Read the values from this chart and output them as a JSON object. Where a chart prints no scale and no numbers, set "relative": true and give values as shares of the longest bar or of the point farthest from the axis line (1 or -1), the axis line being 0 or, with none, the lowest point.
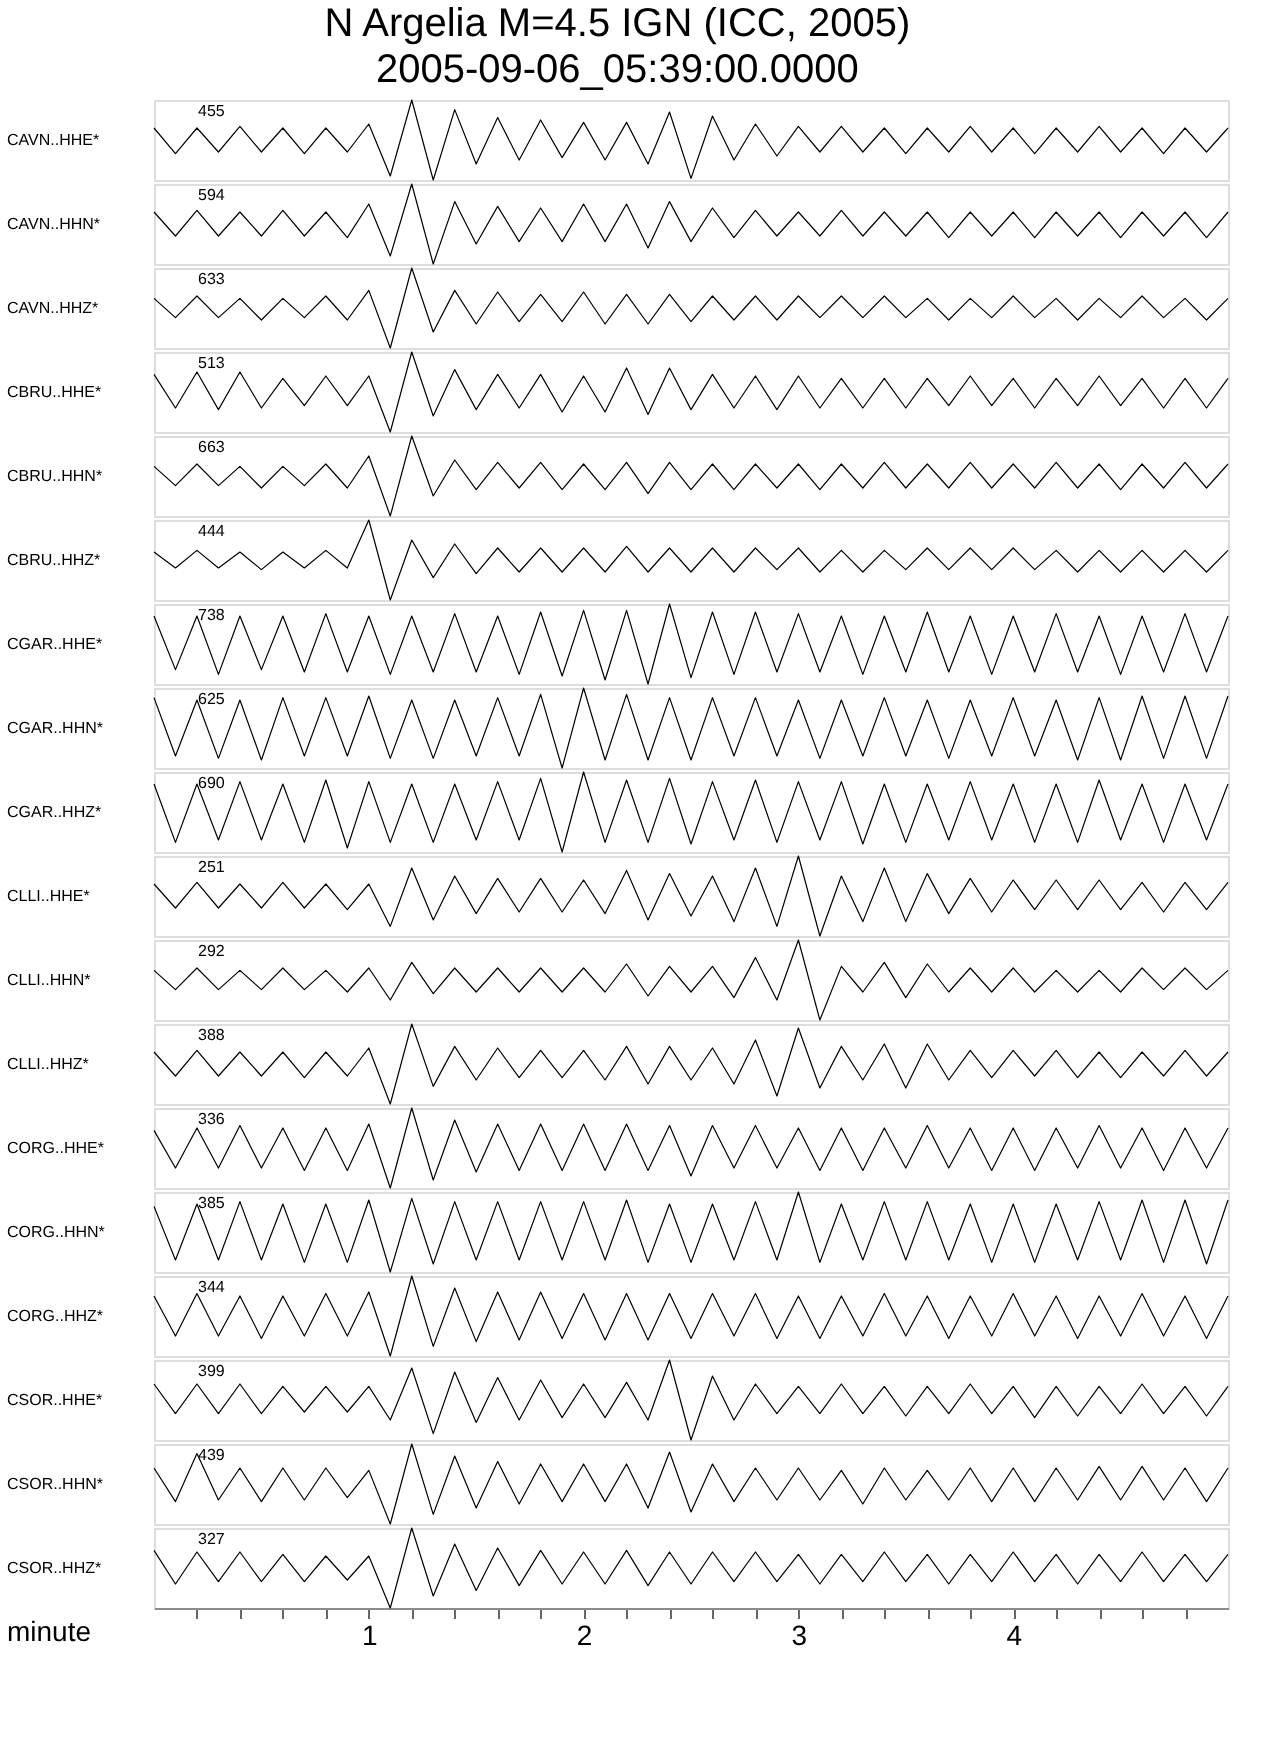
{
  "chart_data": [
    {
      "type": "line",
      "relative": true,
      "title": "N Argelia M=4.5 IGN (ICC, 2005)",
      "subtitle": "2005-09-06_05:39:00.0000",
      "ylabel": "CAVN..HHE*",
      "annotations": [
        "455"
      ],
      "tick_labels": false,
      "color": "#000000",
      "categories": [
        null,
        null,
        null,
        null,
        null,
        null,
        null,
        null,
        null,
        null,
        null,
        null,
        null,
        null,
        null,
        null,
        null,
        null,
        null,
        null,
        null,
        null,
        null,
        null,
        null,
        null,
        null,
        null,
        null,
        null,
        null,
        null,
        null,
        null,
        null,
        null,
        null,
        null,
        null,
        null,
        null,
        null,
        null,
        null,
        null,
        null,
        null,
        null,
        null,
        null,
        null
      ],
      "values": [
        0.65,
        0.33,
        0.65,
        0.35,
        0.67,
        0.35,
        0.65,
        0.33,
        0.65,
        0.35,
        0.7,
        0.05,
        1,
        0,
        0.88,
        0.2,
        0.78,
        0.25,
        0.75,
        0.28,
        0.72,
        0.25,
        0.72,
        0.2,
        0.85,
        0.02,
        0.8,
        0.25,
        0.7,
        0.3,
        0.67,
        0.35,
        0.67,
        0.35,
        0.65,
        0.33,
        0.65,
        0.35,
        0.67,
        0.35,
        0.65,
        0.33,
        0.65,
        0.35,
        0.67,
        0.35,
        0.65,
        0.33,
        0.65,
        0.35,
        0.65
      ]
    },
    {
      "type": "line",
      "relative": true,
      "ylabel": "CAVN..HHN*",
      "annotations": [
        "594"
      ],
      "tick_labels": false,
      "color": "#000000",
      "categories": [
        null,
        null,
        null,
        null,
        null,
        null,
        null,
        null,
        null,
        null,
        null,
        null,
        null,
        null,
        null,
        null,
        null,
        null,
        null,
        null,
        null,
        null,
        null,
        null,
        null,
        null,
        null,
        null,
        null,
        null,
        null,
        null,
        null,
        null,
        null,
        null,
        null,
        null,
        null,
        null,
        null,
        null,
        null,
        null,
        null,
        null,
        null,
        null,
        null,
        null,
        null
      ],
      "values": [
        0.65,
        0.35,
        0.67,
        0.35,
        0.65,
        0.35,
        0.67,
        0.35,
        0.65,
        0.33,
        0.75,
        0.1,
        1,
        0,
        0.78,
        0.25,
        0.72,
        0.28,
        0.7,
        0.28,
        0.75,
        0.28,
        0.75,
        0.2,
        0.78,
        0.28,
        0.7,
        0.33,
        0.67,
        0.35,
        0.65,
        0.35,
        0.67,
        0.35,
        0.65,
        0.35,
        0.65,
        0.33,
        0.65,
        0.35,
        0.65,
        0.33,
        0.65,
        0.35,
        0.65,
        0.33,
        0.65,
        0.35,
        0.65,
        0.33,
        0.65
      ]
    },
    {
      "type": "line",
      "relative": true,
      "ylabel": "CAVN..HHZ*",
      "annotations": [
        "633"
      ],
      "tick_labels": false,
      "color": "#000000",
      "categories": [
        null,
        null,
        null,
        null,
        null,
        null,
        null,
        null,
        null,
        null,
        null,
        null,
        null,
        null,
        null,
        null,
        null,
        null,
        null,
        null,
        null,
        null,
        null,
        null,
        null,
        null,
        null,
        null,
        null,
        null,
        null,
        null,
        null,
        null,
        null,
        null,
        null,
        null,
        null,
        null,
        null,
        null,
        null,
        null,
        null,
        null,
        null,
        null,
        null,
        null,
        null
      ],
      "values": [
        0.62,
        0.38,
        0.65,
        0.38,
        0.62,
        0.35,
        0.62,
        0.38,
        0.65,
        0.35,
        0.72,
        0,
        1,
        0.2,
        0.72,
        0.3,
        0.7,
        0.33,
        0.67,
        0.33,
        0.7,
        0.3,
        0.67,
        0.3,
        0.67,
        0.33,
        0.65,
        0.35,
        0.65,
        0.35,
        0.65,
        0.38,
        0.65,
        0.38,
        0.65,
        0.38,
        0.62,
        0.35,
        0.62,
        0.38,
        0.65,
        0.38,
        0.62,
        0.35,
        0.62,
        0.38,
        0.65,
        0.38,
        0.62,
        0.35,
        0.62
      ]
    },
    {
      "type": "line",
      "relative": true,
      "ylabel": "CBRU..HHE*",
      "annotations": [
        "513"
      ],
      "tick_labels": false,
      "color": "#000000",
      "categories": [
        null,
        null,
        null,
        null,
        null,
        null,
        null,
        null,
        null,
        null,
        null,
        null,
        null,
        null,
        null,
        null,
        null,
        null,
        null,
        null,
        null,
        null,
        null,
        null,
        null,
        null,
        null,
        null,
        null,
        null,
        null,
        null,
        null,
        null,
        null,
        null,
        null,
        null,
        null,
        null,
        null,
        null,
        null,
        null,
        null,
        null,
        null,
        null,
        null,
        null,
        null
      ],
      "values": [
        0.72,
        0.3,
        0.75,
        0.28,
        0.75,
        0.3,
        0.67,
        0.33,
        0.7,
        0.33,
        0.7,
        0,
        1,
        0.2,
        0.78,
        0.28,
        0.72,
        0.3,
        0.72,
        0.25,
        0.7,
        0.25,
        0.8,
        0.22,
        0.8,
        0.28,
        0.72,
        0.3,
        0.7,
        0.28,
        0.7,
        0.3,
        0.67,
        0.3,
        0.67,
        0.3,
        0.67,
        0.33,
        0.7,
        0.33,
        0.67,
        0.3,
        0.67,
        0.33,
        0.7,
        0.33,
        0.67,
        0.3,
        0.67,
        0.3,
        0.67
      ]
    },
    {
      "type": "line",
      "relative": true,
      "ylabel": "CBRU..HHN*",
      "annotations": [
        "663"
      ],
      "tick_labels": false,
      "color": "#000000",
      "categories": [
        null,
        null,
        null,
        null,
        null,
        null,
        null,
        null,
        null,
        null,
        null,
        null,
        null,
        null,
        null,
        null,
        null,
        null,
        null,
        null,
        null,
        null,
        null,
        null,
        null,
        null,
        null,
        null,
        null,
        null,
        null,
        null,
        null,
        null,
        null,
        null,
        null,
        null,
        null,
        null,
        null,
        null,
        null,
        null,
        null,
        null,
        null,
        null,
        null,
        null,
        null
      ],
      "values": [
        0.62,
        0.38,
        0.65,
        0.38,
        0.62,
        0.35,
        0.62,
        0.38,
        0.65,
        0.35,
        0.75,
        0,
        1,
        0.25,
        0.7,
        0.33,
        0.67,
        0.35,
        0.67,
        0.33,
        0.65,
        0.33,
        0.67,
        0.28,
        0.67,
        0.33,
        0.65,
        0.33,
        0.65,
        0.35,
        0.65,
        0.33,
        0.65,
        0.35,
        0.67,
        0.35,
        0.65,
        0.35,
        0.67,
        0.35,
        0.65,
        0.35,
        0.67,
        0.35,
        0.65,
        0.33,
        0.65,
        0.35,
        0.67,
        0.35,
        0.65
      ]
    },
    {
      "type": "line",
      "relative": true,
      "ylabel": "CBRU..HHZ*",
      "annotations": [
        "444"
      ],
      "tick_labels": false,
      "color": "#000000",
      "categories": [
        null,
        null,
        null,
        null,
        null,
        null,
        null,
        null,
        null,
        null,
        null,
        null,
        null,
        null,
        null,
        null,
        null,
        null,
        null,
        null,
        null,
        null,
        null,
        null,
        null,
        null,
        null,
        null,
        null,
        null,
        null,
        null,
        null,
        null,
        null,
        null,
        null,
        null,
        null,
        null,
        null,
        null,
        null,
        null,
        null,
        null,
        null,
        null,
        null,
        null,
        null
      ],
      "values": [
        0.6,
        0.4,
        0.62,
        0.4,
        0.6,
        0.38,
        0.6,
        0.4,
        0.62,
        0.4,
        1,
        0,
        0.75,
        0.28,
        0.7,
        0.33,
        0.65,
        0.35,
        0.65,
        0.35,
        0.65,
        0.35,
        0.67,
        0.35,
        0.65,
        0.35,
        0.65,
        0.35,
        0.65,
        0.38,
        0.65,
        0.35,
        0.62,
        0.35,
        0.62,
        0.38,
        0.65,
        0.38,
        0.65,
        0.38,
        0.65,
        0.38,
        0.62,
        0.35,
        0.62,
        0.35,
        0.62,
        0.35,
        0.62,
        0.35,
        0.62
      ]
    },
    {
      "type": "line",
      "relative": true,
      "ylabel": "CGAR..HHE*",
      "annotations": [
        "738"
      ],
      "tick_labels": false,
      "color": "#000000",
      "categories": [
        null,
        null,
        null,
        null,
        null,
        null,
        null,
        null,
        null,
        null,
        null,
        null,
        null,
        null,
        null,
        null,
        null,
        null,
        null,
        null,
        null,
        null,
        null,
        null,
        null,
        null,
        null,
        null,
        null,
        null,
        null,
        null,
        null,
        null,
        null,
        null,
        null,
        null,
        null,
        null,
        null,
        null,
        null,
        null,
        null,
        null,
        null,
        null,
        null,
        null,
        null
      ],
      "values": [
        0.85,
        0.18,
        0.85,
        0.12,
        0.85,
        0.18,
        0.85,
        0.15,
        0.88,
        0.15,
        0.85,
        0.12,
        0.85,
        0.15,
        0.88,
        0.15,
        0.85,
        0.12,
        0.9,
        0.1,
        0.92,
        0.05,
        0.92,
        0,
        1,
        0.08,
        0.9,
        0.12,
        0.9,
        0.15,
        0.88,
        0.15,
        0.85,
        0.12,
        0.85,
        0.15,
        0.9,
        0.15,
        0.85,
        0.12,
        0.85,
        0.15,
        0.88,
        0.15,
        0.85,
        0.12,
        0.85,
        0.15,
        0.88,
        0.15,
        0.85
      ]
    },
    {
      "type": "line",
      "relative": true,
      "ylabel": "CGAR..HHN*",
      "annotations": [
        "625"
      ],
      "tick_labels": false,
      "color": "#000000",
      "categories": [
        null,
        null,
        null,
        null,
        null,
        null,
        null,
        null,
        null,
        null,
        null,
        null,
        null,
        null,
        null,
        null,
        null,
        null,
        null,
        null,
        null,
        null,
        null,
        null,
        null,
        null,
        null,
        null,
        null,
        null,
        null,
        null,
        null,
        null,
        null,
        null,
        null,
        null,
        null,
        null,
        null,
        null,
        null,
        null,
        null,
        null,
        null,
        null,
        null,
        null,
        null
      ],
      "values": [
        0.88,
        0.15,
        0.85,
        0.12,
        0.85,
        0.1,
        0.88,
        0.15,
        0.88,
        0.15,
        0.9,
        0.12,
        0.85,
        0.12,
        0.85,
        0.15,
        0.88,
        0.15,
        0.92,
        0,
        1,
        0.1,
        0.92,
        0.1,
        0.88,
        0.1,
        0.88,
        0.15,
        0.88,
        0.15,
        0.85,
        0.12,
        0.85,
        0.15,
        0.88,
        0.15,
        0.85,
        0.12,
        0.85,
        0.15,
        0.88,
        0.15,
        0.85,
        0.1,
        0.88,
        0.1,
        0.9,
        0.12,
        0.9,
        0.12,
        0.9
      ]
    },
    {
      "type": "line",
      "relative": true,
      "ylabel": "CGAR..HHZ*",
      "annotations": [
        "690"
      ],
      "tick_labels": false,
      "color": "#000000",
      "categories": [
        null,
        null,
        null,
        null,
        null,
        null,
        null,
        null,
        null,
        null,
        null,
        null,
        null,
        null,
        null,
        null,
        null,
        null,
        null,
        null,
        null,
        null,
        null,
        null,
        null,
        null,
        null,
        null,
        null,
        null,
        null,
        null,
        null,
        null,
        null,
        null,
        null,
        null,
        null,
        null,
        null,
        null,
        null,
        null,
        null,
        null,
        null,
        null,
        null,
        null,
        null
      ],
      "values": [
        0.85,
        0.12,
        0.85,
        0.15,
        0.88,
        0.15,
        0.85,
        0.12,
        0.9,
        0.05,
        0.88,
        0.12,
        0.85,
        0.12,
        0.85,
        0.15,
        0.88,
        0.15,
        0.92,
        0,
        1,
        0.12,
        0.9,
        0.12,
        0.92,
        0.1,
        0.88,
        0.15,
        0.9,
        0.12,
        0.88,
        0.15,
        0.88,
        0.1,
        0.85,
        0.12,
        0.85,
        0.15,
        0.88,
        0.15,
        0.85,
        0.12,
        0.85,
        0.12,
        0.9,
        0.15,
        0.85,
        0.12,
        0.85,
        0.15,
        0.85
      ]
    },
    {
      "type": "line",
      "relative": true,
      "ylabel": "CLLI..HHE*",
      "annotations": [
        "251"
      ],
      "tick_labels": false,
      "color": "#000000",
      "categories": [
        null,
        null,
        null,
        null,
        null,
        null,
        null,
        null,
        null,
        null,
        null,
        null,
        null,
        null,
        null,
        null,
        null,
        null,
        null,
        null,
        null,
        null,
        null,
        null,
        null,
        null,
        null,
        null,
        null,
        null,
        null,
        null,
        null,
        null,
        null,
        null,
        null,
        null,
        null,
        null,
        null,
        null,
        null,
        null,
        null,
        null,
        null,
        null,
        null,
        null,
        null
      ],
      "values": [
        0.65,
        0.35,
        0.67,
        0.35,
        0.65,
        0.35,
        0.67,
        0.35,
        0.65,
        0.33,
        0.65,
        0.12,
        0.85,
        0.2,
        0.75,
        0.28,
        0.72,
        0.3,
        0.72,
        0.3,
        0.7,
        0.28,
        0.82,
        0.2,
        0.78,
        0.25,
        0.75,
        0.18,
        0.85,
        0.12,
        1,
        0,
        0.75,
        0.18,
        0.85,
        0.18,
        0.78,
        0.28,
        0.72,
        0.3,
        0.7,
        0.33,
        0.7,
        0.33,
        0.7,
        0.33,
        0.67,
        0.3,
        0.67,
        0.33,
        0.67
      ]
    },
    {
      "type": "line",
      "relative": true,
      "ylabel": "CLLI..HHN*",
      "annotations": [
        "292"
      ],
      "tick_labels": false,
      "color": "#000000",
      "categories": [
        null,
        null,
        null,
        null,
        null,
        null,
        null,
        null,
        null,
        null,
        null,
        null,
        null,
        null,
        null,
        null,
        null,
        null,
        null,
        null,
        null,
        null,
        null,
        null,
        null,
        null,
        null,
        null,
        null,
        null,
        null,
        null,
        null,
        null,
        null,
        null,
        null,
        null,
        null,
        null,
        null,
        null,
        null,
        null,
        null,
        null,
        null,
        null,
        null,
        null,
        null
      ],
      "values": [
        0.62,
        0.38,
        0.65,
        0.38,
        0.62,
        0.38,
        0.65,
        0.38,
        0.62,
        0.35,
        0.65,
        0.25,
        0.72,
        0.33,
        0.65,
        0.35,
        0.65,
        0.35,
        0.65,
        0.35,
        0.65,
        0.35,
        0.7,
        0.3,
        0.67,
        0.35,
        0.67,
        0.28,
        0.78,
        0.25,
        1,
        0,
        0.67,
        0.35,
        0.72,
        0.28,
        0.7,
        0.35,
        0.65,
        0.35,
        0.65,
        0.35,
        0.62,
        0.35,
        0.62,
        0.35,
        0.65,
        0.38,
        0.65,
        0.38,
        0.62
      ]
    },
    {
      "type": "line",
      "relative": true,
      "ylabel": "CLLI..HHZ*",
      "annotations": [
        "388"
      ],
      "tick_labels": false,
      "color": "#000000",
      "categories": [
        null,
        null,
        null,
        null,
        null,
        null,
        null,
        null,
        null,
        null,
        null,
        null,
        null,
        null,
        null,
        null,
        null,
        null,
        null,
        null,
        null,
        null,
        null,
        null,
        null,
        null,
        null,
        null,
        null,
        null,
        null,
        null,
        null,
        null,
        null,
        null,
        null,
        null,
        null,
        null,
        null,
        null,
        null,
        null,
        null,
        null,
        null,
        null,
        null,
        null,
        null
      ],
      "values": [
        0.65,
        0.35,
        0.67,
        0.35,
        0.65,
        0.35,
        0.65,
        0.33,
        0.65,
        0.35,
        0.7,
        0,
        1,
        0.22,
        0.72,
        0.3,
        0.7,
        0.33,
        0.67,
        0.33,
        0.67,
        0.3,
        0.72,
        0.25,
        0.72,
        0.3,
        0.7,
        0.25,
        0.8,
        0.1,
        0.95,
        0.2,
        0.72,
        0.3,
        0.75,
        0.2,
        0.75,
        0.3,
        0.67,
        0.33,
        0.67,
        0.35,
        0.67,
        0.33,
        0.65,
        0.33,
        0.65,
        0.35,
        0.67,
        0.35,
        0.65
      ]
    },
    {
      "type": "line",
      "relative": true,
      "ylabel": "CORG..HHE*",
      "annotations": [
        "336"
      ],
      "tick_labels": false,
      "color": "#000000",
      "categories": [
        null,
        null,
        null,
        null,
        null,
        null,
        null,
        null,
        null,
        null,
        null,
        null,
        null,
        null,
        null,
        null,
        null,
        null,
        null,
        null,
        null,
        null,
        null,
        null,
        null,
        null,
        null,
        null,
        null,
        null,
        null,
        null,
        null,
        null,
        null,
        null,
        null,
        null,
        null,
        null,
        null,
        null,
        null,
        null,
        null,
        null,
        null,
        null,
        null,
        null,
        null
      ],
      "values": [
        0.72,
        0.25,
        0.75,
        0.25,
        0.78,
        0.25,
        0.75,
        0.22,
        0.75,
        0.22,
        0.8,
        0,
        1,
        0.1,
        0.85,
        0.2,
        0.8,
        0.22,
        0.8,
        0.22,
        0.8,
        0.22,
        0.8,
        0.22,
        0.78,
        0.15,
        0.78,
        0.25,
        0.78,
        0.25,
        0.75,
        0.22,
        0.75,
        0.22,
        0.75,
        0.25,
        0.78,
        0.25,
        0.75,
        0.22,
        0.75,
        0.22,
        0.75,
        0.25,
        0.78,
        0.25,
        0.75,
        0.22,
        0.75,
        0.25,
        0.75
      ]
    },
    {
      "type": "line",
      "relative": true,
      "ylabel": "CORG..HHN*",
      "annotations": [
        "385"
      ],
      "tick_labels": false,
      "color": "#000000",
      "categories": [
        null,
        null,
        null,
        null,
        null,
        null,
        null,
        null,
        null,
        null,
        null,
        null,
        null,
        null,
        null,
        null,
        null,
        null,
        null,
        null,
        null,
        null,
        null,
        null,
        null,
        null,
        null,
        null,
        null,
        null,
        null,
        null,
        null,
        null,
        null,
        null,
        null,
        null,
        null,
        null,
        null,
        null,
        null,
        null,
        null,
        null,
        null,
        null,
        null,
        null,
        null
      ],
      "values": [
        0.82,
        0.15,
        0.85,
        0.15,
        0.88,
        0.15,
        0.85,
        0.12,
        0.85,
        0.12,
        0.9,
        0,
        0.92,
        0.1,
        0.88,
        0.15,
        0.88,
        0.15,
        0.88,
        0.15,
        0.88,
        0.15,
        0.9,
        0.12,
        0.85,
        0.12,
        0.85,
        0.15,
        0.88,
        0.15,
        1,
        0.12,
        0.85,
        0.15,
        0.88,
        0.15,
        0.88,
        0.15,
        0.85,
        0.12,
        0.85,
        0.12,
        0.85,
        0.15,
        0.88,
        0.15,
        0.9,
        0.12,
        0.9,
        0.1,
        0.9
      ]
    },
    {
      "type": "line",
      "relative": true,
      "ylabel": "CORG..HHZ*",
      "annotations": [
        "344"
      ],
      "tick_labels": false,
      "color": "#000000",
      "categories": [
        null,
        null,
        null,
        null,
        null,
        null,
        null,
        null,
        null,
        null,
        null,
        null,
        null,
        null,
        null,
        null,
        null,
        null,
        null,
        null,
        null,
        null,
        null,
        null,
        null,
        null,
        null,
        null,
        null,
        null,
        null,
        null,
        null,
        null,
        null,
        null,
        null,
        null,
        null,
        null,
        null,
        null,
        null,
        null,
        null,
        null,
        null,
        null,
        null,
        null,
        null
      ],
      "values": [
        0.75,
        0.25,
        0.78,
        0.25,
        0.75,
        0.22,
        0.75,
        0.25,
        0.78,
        0.25,
        0.8,
        0,
        1,
        0.12,
        0.85,
        0.18,
        0.8,
        0.2,
        0.8,
        0.22,
        0.78,
        0.2,
        0.78,
        0.2,
        0.78,
        0.22,
        0.78,
        0.25,
        0.78,
        0.22,
        0.75,
        0.22,
        0.75,
        0.25,
        0.78,
        0.25,
        0.75,
        0.22,
        0.75,
        0.25,
        0.78,
        0.25,
        0.75,
        0.22,
        0.75,
        0.25,
        0.78,
        0.25,
        0.75,
        0.22,
        0.75
      ]
    },
    {
      "type": "line",
      "relative": true,
      "ylabel": "CSOR..HHE*",
      "annotations": [
        "399"
      ],
      "tick_labels": false,
      "color": "#000000",
      "categories": [
        null,
        null,
        null,
        null,
        null,
        null,
        null,
        null,
        null,
        null,
        null,
        null,
        null,
        null,
        null,
        null,
        null,
        null,
        null,
        null,
        null,
        null,
        null,
        null,
        null,
        null,
        null,
        null,
        null,
        null,
        null,
        null,
        null,
        null,
        null,
        null,
        null,
        null,
        null,
        null,
        null,
        null,
        null,
        null,
        null,
        null,
        null,
        null,
        null,
        null,
        null
      ],
      "values": [
        0.7,
        0.33,
        0.7,
        0.33,
        0.7,
        0.33,
        0.67,
        0.35,
        0.67,
        0.35,
        0.67,
        0.25,
        0.9,
        0.08,
        0.85,
        0.22,
        0.78,
        0.25,
        0.75,
        0.28,
        0.7,
        0.28,
        0.72,
        0.25,
        1,
        0,
        0.8,
        0.25,
        0.7,
        0.33,
        0.67,
        0.33,
        0.7,
        0.33,
        0.67,
        0.3,
        0.67,
        0.33,
        0.7,
        0.33,
        0.67,
        0.28,
        0.67,
        0.3,
        0.67,
        0.33,
        0.7,
        0.33,
        0.67,
        0.3,
        0.67
      ]
    },
    {
      "type": "line",
      "relative": true,
      "ylabel": "CSOR..HHN*",
      "annotations": [
        "439"
      ],
      "tick_labels": false,
      "color": "#000000",
      "categories": [
        null,
        null,
        null,
        null,
        null,
        null,
        null,
        null,
        null,
        null,
        null,
        null,
        null,
        null,
        null,
        null,
        null,
        null,
        null,
        null,
        null,
        null,
        null,
        null,
        null,
        null,
        null,
        null,
        null,
        null,
        null,
        null,
        null,
        null,
        null,
        null,
        null,
        null,
        null,
        null,
        null,
        null,
        null,
        null,
        null,
        null,
        null,
        null,
        null,
        null,
        null
      ],
      "values": [
        0.7,
        0.28,
        0.88,
        0.3,
        0.7,
        0.28,
        0.7,
        0.3,
        0.7,
        0.33,
        0.67,
        0,
        1,
        0.12,
        0.85,
        0.2,
        0.78,
        0.25,
        0.75,
        0.28,
        0.75,
        0.28,
        0.75,
        0.2,
        0.9,
        0.15,
        0.75,
        0.28,
        0.7,
        0.3,
        0.7,
        0.3,
        0.67,
        0.25,
        0.7,
        0.3,
        0.67,
        0.3,
        0.7,
        0.28,
        0.7,
        0.28,
        0.7,
        0.3,
        0.72,
        0.3,
        0.72,
        0.3,
        0.7,
        0.28,
        0.7
      ]
    },
    {
      "type": "line",
      "relative": true,
      "ylabel": "CSOR..HHZ*",
      "annotations": [
        "327"
      ],
      "tick_labels": "x",
      "xlabel": "minute",
      "xlim": [
        0,
        5
      ],
      "xticks": [
        {
          "value": 0.2,
          "label": null
        },
        {
          "value": 0.4,
          "label": null
        },
        {
          "value": 0.6,
          "label": null
        },
        {
          "value": 0.8,
          "label": null
        },
        1,
        {
          "value": 1.2,
          "label": null
        },
        {
          "value": 1.4,
          "label": null
        },
        {
          "value": 1.6,
          "label": null
        },
        {
          "value": 1.8,
          "label": null
        },
        2,
        {
          "value": 2.2,
          "label": null
        },
        {
          "value": 2.4,
          "label": null
        },
        {
          "value": 2.6,
          "label": null
        },
        {
          "value": 2.8,
          "label": null
        },
        3,
        {
          "value": 3.2,
          "label": null
        },
        {
          "value": 3.4,
          "label": null
        },
        {
          "value": 3.6,
          "label": null
        },
        {
          "value": 3.8,
          "label": null
        },
        4,
        {
          "value": 4.2,
          "label": null
        },
        {
          "value": 4.4,
          "label": null
        },
        {
          "value": 4.6,
          "label": null
        },
        {
          "value": 4.8,
          "label": null
        }
      ],
      "color": "#000000",
      "x": [
        0,
        0.1,
        0.2,
        0.3,
        0.4,
        0.5,
        0.6,
        0.7,
        0.8,
        0.9,
        1,
        1.1,
        1.2,
        1.3,
        1.4,
        1.5,
        1.6,
        1.7,
        1.8,
        1.9,
        2,
        2.1,
        2.2,
        2.3,
        2.4,
        2.5,
        2.6,
        2.7,
        2.8,
        2.9,
        3,
        3.1,
        3.2,
        3.3,
        3.4,
        3.5,
        3.6,
        3.7,
        3.8,
        3.9,
        4,
        4.1,
        4.2,
        4.3,
        4.4,
        4.5,
        4.6,
        4.7,
        4.8,
        4.9,
        5
      ],
      "values": [
        0.72,
        0.3,
        0.7,
        0.33,
        0.7,
        0.33,
        0.67,
        0.33,
        0.65,
        0.35,
        0.65,
        0,
        1,
        0.15,
        0.8,
        0.22,
        0.75,
        0.28,
        0.72,
        0.3,
        0.7,
        0.3,
        0.72,
        0.28,
        0.7,
        0.3,
        0.7,
        0.33,
        0.7,
        0.33,
        0.67,
        0.3,
        0.67,
        0.33,
        0.7,
        0.33,
        0.67,
        0.3,
        0.67,
        0.33,
        0.7,
        0.33,
        0.67,
        0.3,
        0.67,
        0.33,
        0.7,
        0.33,
        0.67,
        0.33,
        0.67
      ]
    }
  ]
}
